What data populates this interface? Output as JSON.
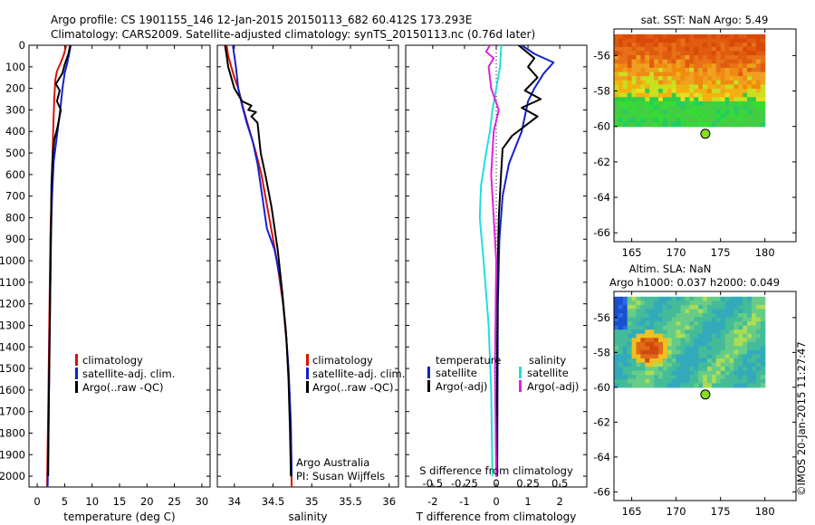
{
  "title_line1": "Argo profile: CS 1901155_146 12-Jan-2015 20150113_682 60.412S 173.293E",
  "title_line2": "Climatology: CARS2009. Satellite-adjusted climatology: synTS_20150113.nc (0.76d later)",
  "colors": {
    "climatology": "#dd1100",
    "satellite": "#1122cc",
    "argo": "#000000",
    "cyan": "#22dddd",
    "magenta": "#dd22dd",
    "marker": "#88dd22"
  },
  "depth_ticks": [
    "0",
    "100",
    "200",
    "300",
    "400",
    "500",
    "600",
    "700",
    "800",
    "900",
    "1000",
    "1100",
    "1200",
    "1300",
    "1400",
    "1500",
    "1600",
    "1700",
    "1800",
    "1900",
    "2000"
  ],
  "legend_labels": {
    "climatology": "climatology",
    "satellite_adj": "satellite-adj. clim.",
    "argo": "Argo(..raw -QC)"
  },
  "chart_data": [
    {
      "type": "line",
      "name": "temperature",
      "xlabel": "temperature (deg C)",
      "x_ticks": [
        "0",
        "5",
        "10",
        "15",
        "20",
        "25",
        "30"
      ],
      "xlim": [
        -1.5,
        31.5
      ],
      "ylim": [
        2050,
        0
      ],
      "series": [
        {
          "name": "climatology",
          "color": "#dd1100",
          "points": [
            [
              5.3,
              0
            ],
            [
              4.9,
              40
            ],
            [
              4.3,
              80
            ],
            [
              3.6,
              120
            ],
            [
              3.3,
              160
            ],
            [
              3.1,
              250
            ],
            [
              2.9,
              400
            ],
            [
              2.7,
              600
            ],
            [
              2.4,
              900
            ],
            [
              2.2,
              1300
            ],
            [
              2.0,
              1700
            ],
            [
              1.8,
              2050
            ]
          ]
        },
        {
          "name": "satellite-adj. clim.",
          "color": "#1122cc",
          "points": [
            [
              6.1,
              0
            ],
            [
              5.9,
              30
            ],
            [
              5.5,
              80
            ],
            [
              5.0,
              130
            ],
            [
              4.6,
              200
            ],
            [
              4.2,
              300
            ],
            [
              3.6,
              420
            ],
            [
              3.0,
              540
            ],
            [
              2.7,
              700
            ],
            [
              2.5,
              900
            ],
            [
              2.3,
              1300
            ],
            [
              2.1,
              1700
            ],
            [
              1.9,
              2050
            ]
          ]
        },
        {
          "name": "Argo(..raw -QC)",
          "color": "#000000",
          "points": [
            [
              6.0,
              0
            ],
            [
              5.7,
              40
            ],
            [
              5.0,
              90
            ],
            [
              4.6,
              130
            ],
            [
              3.4,
              180
            ],
            [
              4.1,
              210
            ],
            [
              3.6,
              260
            ],
            [
              4.3,
              300
            ],
            [
              3.7,
              380
            ],
            [
              3.1,
              440
            ],
            [
              2.8,
              520
            ],
            [
              2.6,
              650
            ],
            [
              2.5,
              900
            ],
            [
              2.3,
              1300
            ],
            [
              2.1,
              1700
            ],
            [
              2.0,
              2000
            ]
          ]
        }
      ]
    },
    {
      "type": "line",
      "name": "salinity",
      "xlabel": "salinity",
      "x_ticks": [
        "34",
        "34.5",
        "35",
        "35.5",
        "36"
      ],
      "xlim": [
        33.78,
        36.12
      ],
      "ylim": [
        2050,
        0
      ],
      "annotation": [
        "Argo Australia",
        "PI: Susan Wijffels"
      ],
      "series": [
        {
          "name": "climatology",
          "color": "#dd1100",
          "points": [
            [
              33.9,
              0
            ],
            [
              33.92,
              50
            ],
            [
              33.96,
              100
            ],
            [
              34.0,
              150
            ],
            [
              34.05,
              200
            ],
            [
              34.12,
              300
            ],
            [
              34.2,
              400
            ],
            [
              34.28,
              500
            ],
            [
              34.35,
              600
            ],
            [
              34.45,
              800
            ],
            [
              34.55,
              1000
            ],
            [
              34.63,
              1200
            ],
            [
              34.68,
              1400
            ],
            [
              34.71,
              1600
            ],
            [
              34.73,
              1800
            ],
            [
              34.74,
              2050
            ]
          ]
        },
        {
          "name": "satellite-adj. clim.",
          "color": "#1122cc",
          "points": [
            [
              33.98,
              0
            ],
            [
              34.0,
              50
            ],
            [
              34.02,
              100
            ],
            [
              34.05,
              200
            ],
            [
              34.1,
              280
            ],
            [
              34.16,
              360
            ],
            [
              34.24,
              450
            ],
            [
              34.3,
              550
            ],
            [
              34.36,
              700
            ],
            [
              34.42,
              850
            ],
            [
              34.52,
              950
            ],
            [
              34.6,
              1100
            ],
            [
              34.66,
              1300
            ],
            [
              34.7,
              1500
            ],
            [
              34.73,
              1750
            ],
            [
              34.74,
              2000
            ]
          ]
        },
        {
          "name": "Argo(..raw -QC)",
          "color": "#000000",
          "points": [
            [
              33.88,
              0
            ],
            [
              33.9,
              50
            ],
            [
              33.92,
              100
            ],
            [
              33.96,
              150
            ],
            [
              34.0,
              200
            ],
            [
              34.1,
              260
            ],
            [
              34.22,
              280
            ],
            [
              34.18,
              300
            ],
            [
              34.28,
              310
            ],
            [
              34.22,
              330
            ],
            [
              34.3,
              360
            ],
            [
              34.34,
              500
            ],
            [
              34.4,
              600
            ],
            [
              34.48,
              750
            ],
            [
              34.56,
              950
            ],
            [
              34.62,
              1150
            ],
            [
              34.67,
              1350
            ],
            [
              34.7,
              1550
            ],
            [
              34.72,
              1800
            ],
            [
              34.73,
              2000
            ]
          ]
        }
      ]
    },
    {
      "type": "line",
      "name": "differences",
      "xlabel": "T difference from climatology",
      "xlabel_top": "S difference from climatology",
      "x_ticks": [
        "-2",
        "-1",
        "0",
        "1",
        "2"
      ],
      "s_ticks": [
        "-0.5",
        "-0.25",
        "0",
        "0.25",
        "0.5"
      ],
      "xlim": [
        -2.85,
        2.85
      ],
      "s_lim": [
        -0.7125,
        0.7125
      ],
      "ylim": [
        2050,
        0
      ],
      "legend_headers": [
        "temperature",
        "salinity"
      ],
      "legend_labels": [
        "satellite",
        "Argo(-adj)",
        "satellite",
        "Argo(-adj)"
      ],
      "series": [
        {
          "name": "temperature satellite",
          "unit": "T",
          "color": "#1122cc",
          "points": [
            [
              0.8,
              0
            ],
            [
              1.2,
              40
            ],
            [
              1.8,
              80
            ],
            [
              1.5,
              130
            ],
            [
              1.2,
              200
            ],
            [
              1.0,
              260
            ],
            [
              0.8,
              400
            ],
            [
              0.4,
              550
            ],
            [
              0.2,
              700
            ],
            [
              0.1,
              900
            ],
            [
              0.05,
              1200
            ],
            [
              0.03,
              2000
            ]
          ]
        },
        {
          "name": "temperature Argo(-adj)",
          "unit": "T",
          "color": "#000000",
          "points": [
            [
              0.7,
              0
            ],
            [
              1.2,
              60
            ],
            [
              1.0,
              100
            ],
            [
              1.3,
              150
            ],
            [
              0.9,
              210
            ],
            [
              1.4,
              250
            ],
            [
              0.8,
              290
            ],
            [
              1.3,
              330
            ],
            [
              0.5,
              420
            ],
            [
              0.2,
              480
            ],
            [
              0.15,
              600
            ],
            [
              0.08,
              800
            ],
            [
              0.05,
              1000
            ],
            [
              0.03,
              1400
            ],
            [
              0.02,
              2000
            ]
          ]
        },
        {
          "name": "salinity satellite",
          "unit": "S",
          "color": "#22dddd",
          "points": [
            [
              0.04,
              0
            ],
            [
              0.03,
              100
            ],
            [
              0.0,
              200
            ],
            [
              -0.03,
              300
            ],
            [
              -0.05,
              400
            ],
            [
              -0.08,
              500
            ],
            [
              -0.12,
              650
            ],
            [
              -0.13,
              800
            ],
            [
              -0.1,
              1000
            ],
            [
              -0.06,
              1300
            ],
            [
              -0.04,
              1600
            ],
            [
              -0.03,
              2000
            ]
          ]
        },
        {
          "name": "salinity Argo(-adj)",
          "unit": "S",
          "color": "#dd22dd",
          "points": [
            [
              -0.05,
              0
            ],
            [
              -0.08,
              30
            ],
            [
              -0.02,
              60
            ],
            [
              -0.06,
              100
            ],
            [
              -0.04,
              200
            ],
            [
              0.02,
              300
            ],
            [
              -0.02,
              400
            ],
            [
              -0.04,
              600
            ],
            [
              -0.02,
              800
            ],
            [
              0.0,
              1000
            ],
            [
              -0.01,
              1500
            ],
            [
              0.0,
              2000
            ]
          ]
        }
      ]
    },
    {
      "type": "heatmap",
      "name": "sst_map",
      "title": "sat. SST: NaN Argo: 5.49",
      "x_ticks": [
        "165",
        "170",
        "175",
        "180"
      ],
      "y_ticks": [
        "-56",
        "-58",
        "-60",
        "-62",
        "-64",
        "-66"
      ],
      "xlim": [
        163,
        183.5
      ],
      "ylim": [
        -54.5,
        -66.5
      ],
      "data_extent": {
        "lon": [
          163,
          180
        ],
        "lat": [
          -54.8,
          -60
        ]
      },
      "marker": {
        "lon": 173.293,
        "lat": -60.412
      }
    },
    {
      "type": "heatmap",
      "name": "sla_map",
      "title_line1": "Altim. SLA: NaN",
      "title_line2": "Argo h1000: 0.037 h2000: 0.049",
      "x_ticks": [
        "165",
        "170",
        "175",
        "180"
      ],
      "y_ticks": [
        "-56",
        "-58",
        "-60",
        "-62",
        "-64",
        "-66"
      ],
      "xlim": [
        163,
        183.5
      ],
      "ylim": [
        -54.5,
        -66.5
      ],
      "data_extent": {
        "lon": [
          163,
          180
        ],
        "lat": [
          -54.8,
          -60
        ]
      },
      "marker": {
        "lon": 173.293,
        "lat": -60.412
      }
    }
  ],
  "watermark": "©IMOS 20-Jan-2015 11:27:47"
}
